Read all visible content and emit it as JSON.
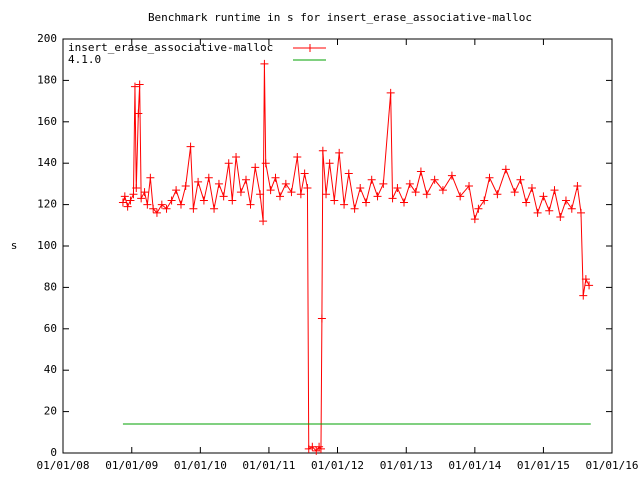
{
  "chart_data": {
    "type": "line",
    "title": "Benchmark runtime in s for insert_erase_associative-malloc",
    "y_label": "s",
    "xlim": [
      "2008-01-01",
      "2016-01-01"
    ],
    "xticks": [
      {
        "value": "2008-01-01",
        "label": "01/01/08"
      },
      {
        "value": "2009-01-01",
        "label": "01/01/09"
      },
      {
        "value": "2010-01-01",
        "label": "01/01/10"
      },
      {
        "value": "2011-01-01",
        "label": "01/01/11"
      },
      {
        "value": "2012-01-01",
        "label": "01/01/12"
      },
      {
        "value": "2013-01-01",
        "label": "01/01/13"
      },
      {
        "value": "2014-01-01",
        "label": "01/01/14"
      },
      {
        "value": "2015-01-01",
        "label": "01/01/15"
      },
      {
        "value": "2016-01-01",
        "label": "01/01/16"
      }
    ],
    "ylim": [
      0,
      200
    ],
    "yticks": [
      0,
      20,
      40,
      60,
      80,
      100,
      120,
      140,
      160,
      180,
      200
    ],
    "grid": false,
    "legend": "top-left",
    "series": [
      {
        "name": "insert_erase_associative-malloc",
        "color": "#ff0000",
        "marker": "plus",
        "x": [
          "2008-11-15",
          "2008-11-25",
          "2008-12-10",
          "2008-12-25",
          "2009-01-10",
          "2009-01-18",
          "2009-01-25",
          "2009-02-05",
          "2009-02-12",
          "2009-02-20",
          "2009-03-10",
          "2009-03-25",
          "2009-04-10",
          "2009-04-25",
          "2009-05-15",
          "2009-06-10",
          "2009-07-05",
          "2009-08-01",
          "2009-08-25",
          "2009-09-20",
          "2009-10-15",
          "2009-11-10",
          "2009-11-25",
          "2009-12-20",
          "2010-01-20",
          "2010-02-15",
          "2010-03-15",
          "2010-04-10",
          "2010-05-05",
          "2010-06-01",
          "2010-06-20",
          "2010-07-10",
          "2010-08-05",
          "2010-09-01",
          "2010-09-25",
          "2010-10-20",
          "2010-11-15",
          "2010-12-01",
          "2010-12-08",
          "2010-12-15",
          "2011-01-10",
          "2011-02-05",
          "2011-03-01",
          "2011-04-01",
          "2011-05-01",
          "2011-06-01",
          "2011-06-20",
          "2011-07-10",
          "2011-07-25",
          "2011-08-01",
          "2011-08-20",
          "2011-09-10",
          "2011-09-25",
          "2011-10-05",
          "2011-10-10",
          "2011-10-15",
          "2011-11-01",
          "2011-11-20",
          "2011-12-15",
          "2012-01-10",
          "2012-02-05",
          "2012-03-01",
          "2012-04-01",
          "2012-05-01",
          "2012-06-01",
          "2012-07-01",
          "2012-08-01",
          "2012-09-01",
          "2012-10-10",
          "2012-10-20",
          "2012-11-15",
          "2012-12-20",
          "2013-01-20",
          "2013-02-20",
          "2013-03-20",
          "2013-04-20",
          "2013-06-01",
          "2013-07-15",
          "2013-09-01",
          "2013-10-15",
          "2013-12-01",
          "2014-01-01",
          "2014-01-20",
          "2014-02-20",
          "2014-03-20",
          "2014-05-01",
          "2014-06-15",
          "2014-08-01",
          "2014-09-01",
          "2014-10-01",
          "2014-11-01",
          "2014-12-01",
          "2015-01-01",
          "2015-02-01",
          "2015-03-01",
          "2015-04-01",
          "2015-05-01",
          "2015-06-01",
          "2015-07-01",
          "2015-07-20",
          "2015-08-01",
          "2015-08-15",
          "2015-09-01"
        ],
        "values": [
          121,
          124,
          119,
          122,
          125,
          177,
          128,
          164,
          178,
          123,
          126,
          120,
          133,
          118,
          116,
          120,
          118,
          122,
          127,
          120,
          129,
          148,
          118,
          131,
          122,
          133,
          118,
          130,
          124,
          140,
          122,
          143,
          126,
          132,
          120,
          138,
          125,
          112,
          188,
          140,
          127,
          133,
          124,
          130,
          126,
          143,
          125,
          135,
          128,
          2,
          3,
          1,
          3,
          2,
          65,
          146,
          125,
          140,
          122,
          145,
          120,
          135,
          118,
          128,
          121,
          132,
          124,
          130,
          174,
          123,
          128,
          121,
          130,
          126,
          136,
          125,
          132,
          127,
          134,
          124,
          129,
          113,
          118,
          122,
          133,
          125,
          137,
          126,
          132,
          121,
          128,
          116,
          124,
          117,
          127,
          114,
          122,
          118,
          129,
          116,
          76,
          84,
          81
        ]
      },
      {
        "name": "4.1.0",
        "color": "#00a000",
        "marker": "none",
        "x": [
          "2008-11-15",
          "2015-09-10"
        ],
        "values": [
          14,
          14
        ]
      }
    ]
  }
}
